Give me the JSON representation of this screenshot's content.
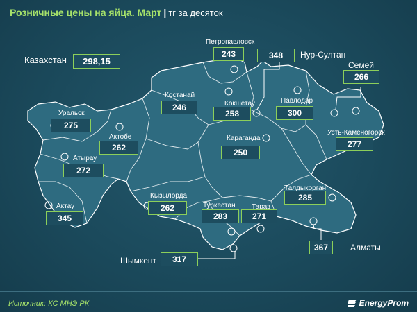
{
  "header": {
    "title": "Розничные цены на яйца. Март",
    "separator": "|",
    "unit": "тг за десяток"
  },
  "country": {
    "name": "Казахстан",
    "value": "298,15"
  },
  "regions": [
    {
      "key": "petropavlovsk",
      "name": "Петропавловск",
      "value": "243"
    },
    {
      "key": "nursultan",
      "name": "Нур-Султан",
      "value": "348"
    },
    {
      "key": "semey",
      "name": "Семей",
      "value": "266"
    },
    {
      "key": "kostanay",
      "name": "Костанай",
      "value": "246"
    },
    {
      "key": "kokshetau",
      "name": "Кокшетау",
      "value": "258"
    },
    {
      "key": "pavlodar",
      "name": "Павлодар",
      "value": "300"
    },
    {
      "key": "uralsk",
      "name": "Уральск",
      "value": "275"
    },
    {
      "key": "aktobe",
      "name": "Актобе",
      "value": "262"
    },
    {
      "key": "ustkamenogorsk",
      "name": "Усть-Каменогорск",
      "value": "277"
    },
    {
      "key": "karaganda",
      "name": "Караганда",
      "value": "250"
    },
    {
      "key": "atyrau",
      "name": "Атырау",
      "value": "272"
    },
    {
      "key": "taldykorgan",
      "name": "Талдыкорган",
      "value": "285"
    },
    {
      "key": "kyzylorda",
      "name": "Кызылорда",
      "value": "262"
    },
    {
      "key": "turkestan",
      "name": "Туркестан",
      "value": "283"
    },
    {
      "key": "taraz",
      "name": "Тараз",
      "value": "271"
    },
    {
      "key": "aktau",
      "name": "Актау",
      "value": "345"
    },
    {
      "key": "almaty",
      "name": "Алматы",
      "value": "367"
    },
    {
      "key": "shymkent",
      "name": "Шымкент",
      "value": "317"
    }
  ],
  "footer": {
    "source": "Источник: КС МНЭ РК",
    "brand": "EnergyProm"
  },
  "colors": {
    "background": "#1b4a5c",
    "map_fill": "#2e6b80",
    "map_border": "#ffffff",
    "accent": "#a6e26a",
    "box_border": "#8ccf5a"
  }
}
